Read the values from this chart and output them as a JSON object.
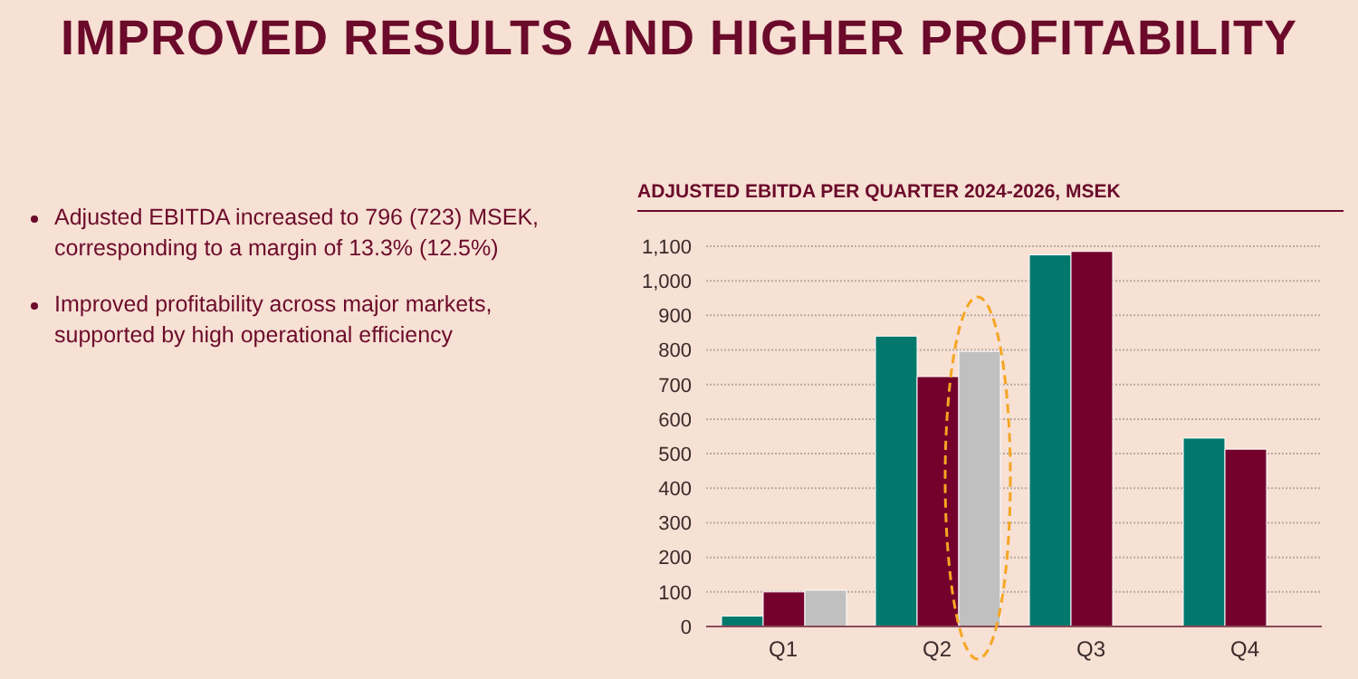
{
  "chart_data": {
    "type": "bar",
    "title": "IMPROVED RESULTS AND HIGHER PROFITABILITY",
    "subtitle": "ADJUSTED EBITDA PER QUARTER 2024-2026, MSEK",
    "annotations": [
      "Adjusted EBITDA increased to 796 (723) MSEK, corresponding to a margin of 13.3% (12.5%)",
      "Improved profitability across major markets, supported by high operational efficiency"
    ],
    "categories": [
      "Q1",
      "Q2",
      "Q3",
      "Q4"
    ],
    "series": [
      {
        "color": "#00786c",
        "values": [
          30,
          840,
          1075,
          545
        ]
      },
      {
        "color": "#74002c",
        "values": [
          100,
          723,
          1085,
          513
        ]
      },
      {
        "color": "#c0c0c0",
        "values": [
          105,
          796,
          null,
          null
        ]
      }
    ],
    "ylim": [
      0,
      1100
    ],
    "yticks": [
      0,
      100,
      200,
      300,
      400,
      500,
      600,
      700,
      800,
      900,
      {
        "value": 1000,
        "label": "1,000"
      },
      {
        "value": 1100,
        "label": "1,100"
      }
    ],
    "grid": "y"
  }
}
